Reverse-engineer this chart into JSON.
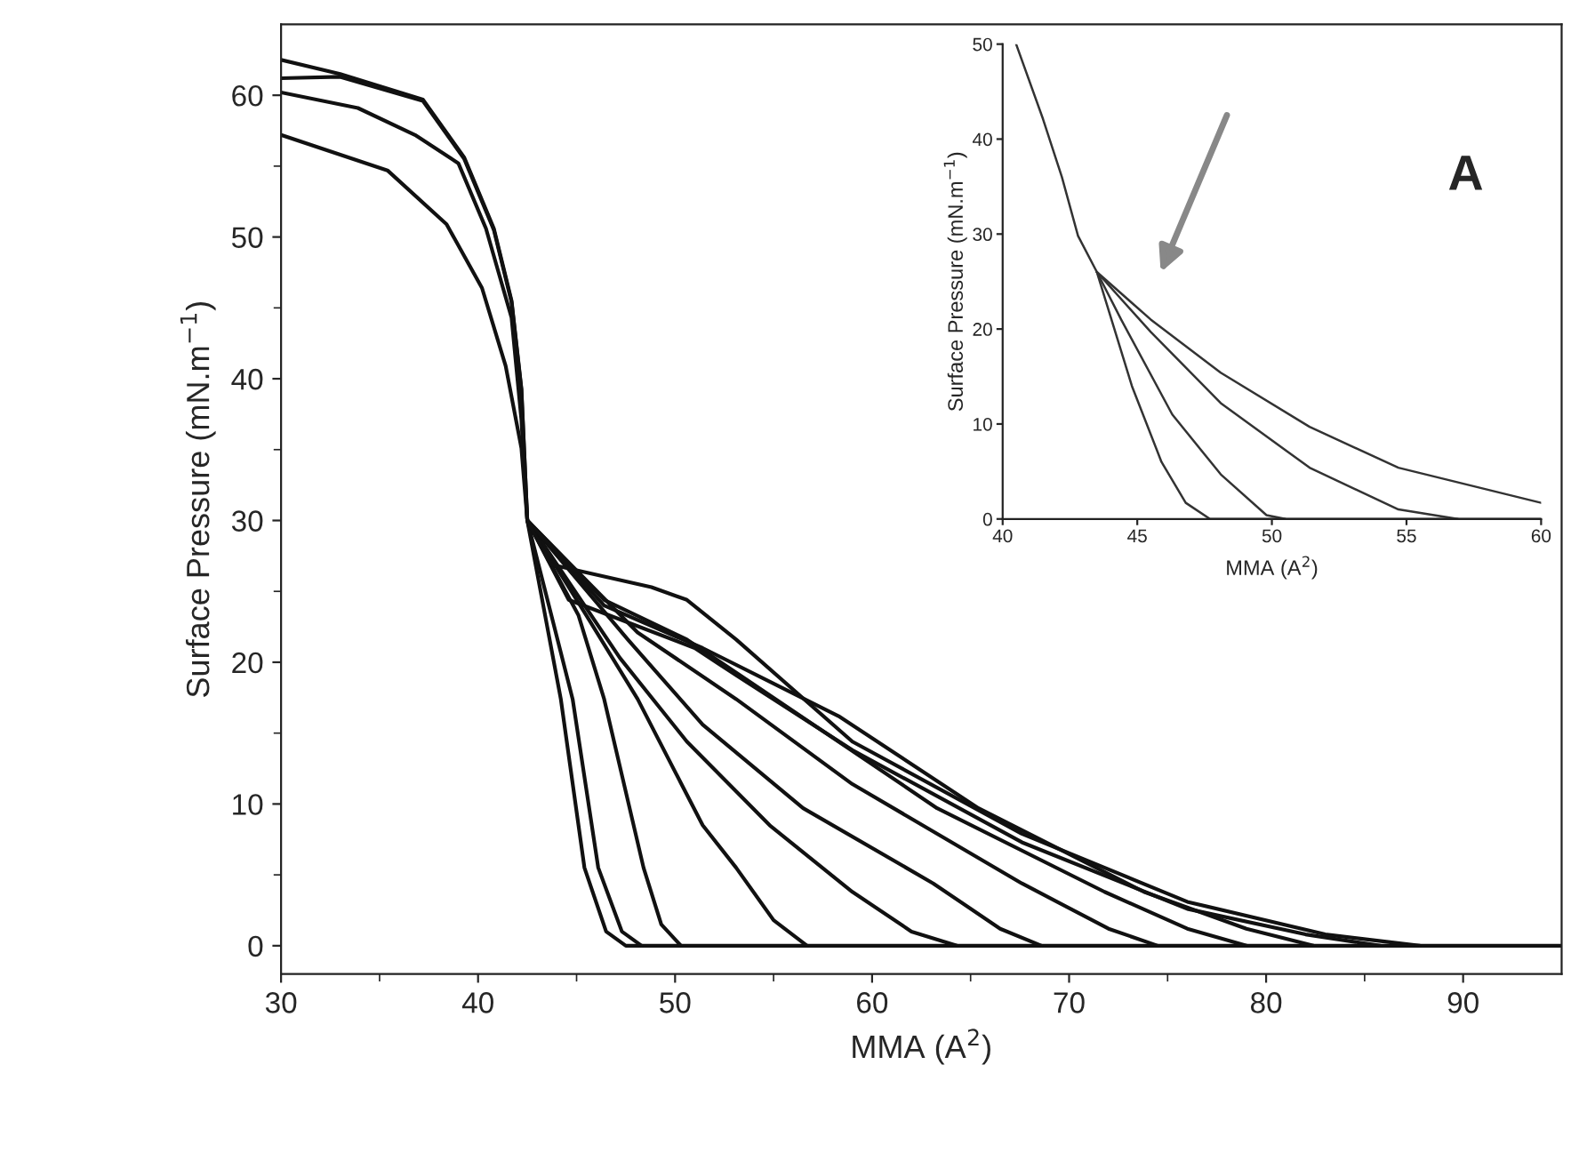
{
  "chart_data": [
    {
      "type": "line",
      "xlabel": "MMA (A$^{2}$)",
      "ylabel": "Surface Pressure (mN.m$^{−1}$)",
      "xlim": [
        30,
        95
      ],
      "ylim": [
        -2,
        65
      ],
      "xticks": [
        30,
        40,
        50,
        60,
        70,
        80,
        90,
        {
          "value": 35,
          "label": null
        },
        {
          "value": 45,
          "label": null
        },
        {
          "value": 55,
          "label": null
        },
        {
          "value": 65,
          "label": null
        },
        {
          "value": 75,
          "label": null
        },
        {
          "value": 85,
          "label": null
        }
      ],
      "yticks": [
        0,
        10,
        20,
        30,
        40,
        50,
        60,
        {
          "value": 5,
          "label": null
        },
        {
          "value": 15,
          "label": null
        },
        {
          "value": 25,
          "label": null
        },
        {
          "value": 35,
          "label": null
        },
        {
          "value": 45,
          "label": null
        },
        {
          "value": 55,
          "label": null
        }
      ],
      "series": [
        {
          "color": "#111111",
          "x": [
            30,
            33,
            37.2,
            39.3,
            40.8,
            41.7,
            42.2,
            42.5,
            44.2,
            45.4,
            46.5,
            47.5,
            95
          ],
          "values": [
            62.5,
            61.5,
            59.7,
            55.6,
            50.6,
            45.5,
            39.3,
            30,
            17.4,
            5.5,
            1,
            0,
            0
          ]
        },
        {
          "color": "#111111",
          "x": [
            42.5,
            44.8,
            46.1,
            47.3,
            48.3
          ],
          "values": [
            30,
            17.4,
            5.5,
            1,
            0
          ]
        },
        {
          "color": "#111111",
          "x": [
            42.5,
            45.1,
            46.4,
            48.4,
            49.3,
            50.3
          ],
          "values": [
            30,
            23.3,
            17.4,
            5.5,
            1.5,
            0
          ]
        },
        {
          "color": "#111111",
          "x": [
            42.5,
            45.5,
            48.1,
            51.4,
            53.1,
            55,
            56.7
          ],
          "values": [
            30,
            23.3,
            17.4,
            8.5,
            5.5,
            1.8,
            0
          ]
        },
        {
          "color": "#111111",
          "x": [
            30,
            33,
            37.2,
            39.3,
            40.8,
            41.7,
            42.2,
            42.5,
            47.2,
            50.6,
            54.8,
            59,
            62,
            64.3
          ],
          "values": [
            61.2,
            61.3,
            59.6,
            55.5,
            50.5,
            45.4,
            39.2,
            30,
            20.3,
            14.4,
            8.5,
            3.8,
            1,
            0
          ]
        },
        {
          "color": "#111111",
          "x": [
            42.5,
            47.6,
            51.4,
            56.5,
            63.1,
            66.5,
            68.6
          ],
          "values": [
            30,
            21.6,
            15.6,
            9.7,
            4.4,
            1.2,
            0
          ]
        },
        {
          "color": "#111111",
          "x": [
            42.5,
            48.1,
            53.1,
            59,
            67.6,
            72,
            74.5
          ],
          "values": [
            30,
            22.1,
            17.4,
            11.4,
            4.4,
            1.2,
            0
          ]
        },
        {
          "color": "#111111",
          "x": [
            30,
            33.9,
            36.8,
            39,
            40.4,
            41.7,
            42.2,
            42.5,
            46.4,
            50.6,
            55.1,
            63.3,
            71.8,
            76,
            79
          ],
          "values": [
            60.2,
            59.1,
            57.2,
            55.2,
            50.6,
            44.3,
            37.1,
            30,
            24.4,
            21.6,
            17.4,
            9.7,
            3.8,
            1.2,
            0
          ]
        },
        {
          "color": "#111111",
          "x": [
            42.5,
            46.4,
            51.4,
            58.3,
            65.4,
            73.8,
            79,
            82.4
          ],
          "values": [
            30,
            24,
            21,
            16.2,
            9.7,
            3.8,
            1.2,
            0
          ]
        },
        {
          "color": "#111111",
          "x": [
            42.5,
            44.6,
            51,
            52.3,
            59,
            67.6,
            76,
            82,
            85.8
          ],
          "values": [
            30,
            24.4,
            21,
            19.8,
            13.8,
            7.3,
            2.6,
            0.8,
            0
          ]
        },
        {
          "color": "#111111",
          "x": [
            30,
            35.4,
            38.4,
            40.2,
            41.4,
            42.2,
            42.5,
            43.7,
            48.8,
            50.6,
            53.1,
            59,
            67.6,
            76,
            83,
            87.8
          ],
          "values": [
            57.2,
            54.7,
            50.9,
            46.4,
            40.9,
            35.1,
            30,
            26.9,
            25.3,
            24.4,
            21.6,
            14.4,
            7.9,
            3.1,
            0.8,
            0
          ]
        }
      ]
    },
    {
      "type": "line",
      "xlabel": "MMA (A$^{2}$)",
      "ylabel": "Surface Pressure (mN.m$^{−1}$)",
      "xlim": [
        40,
        60
      ],
      "ylim": [
        0,
        50
      ],
      "xticks": [
        40,
        45,
        50,
        55,
        60
      ],
      "yticks": [
        0,
        10,
        20,
        30,
        40,
        50
      ],
      "annotations": [
        "A"
      ],
      "series": [
        {
          "color": "#333333",
          "x": [
            40.5,
            41.5,
            42.2,
            42.8,
            43.5,
            44.8,
            45.9,
            46.8,
            47.7,
            60
          ],
          "values": [
            50,
            42.1,
            36,
            29.8,
            26,
            14,
            6,
            1.7,
            0,
            0
          ]
        },
        {
          "color": "#333333",
          "x": [
            43.5,
            44.4,
            46.3,
            48.1,
            49.8,
            50.5
          ],
          "values": [
            26,
            21,
            11,
            4.7,
            0.4,
            0
          ]
        },
        {
          "color": "#333333",
          "x": [
            43.5,
            45.5,
            48.1,
            51.4,
            54.7,
            56.9
          ],
          "values": [
            26,
            19.7,
            12.2,
            5.4,
            1,
            0
          ]
        },
        {
          "color": "#333333",
          "x": [
            43.5,
            45.5,
            48.1,
            51.4,
            54.7,
            60
          ],
          "values": [
            26,
            21,
            15.4,
            9.7,
            5.4,
            1.7
          ]
        }
      ]
    }
  ]
}
